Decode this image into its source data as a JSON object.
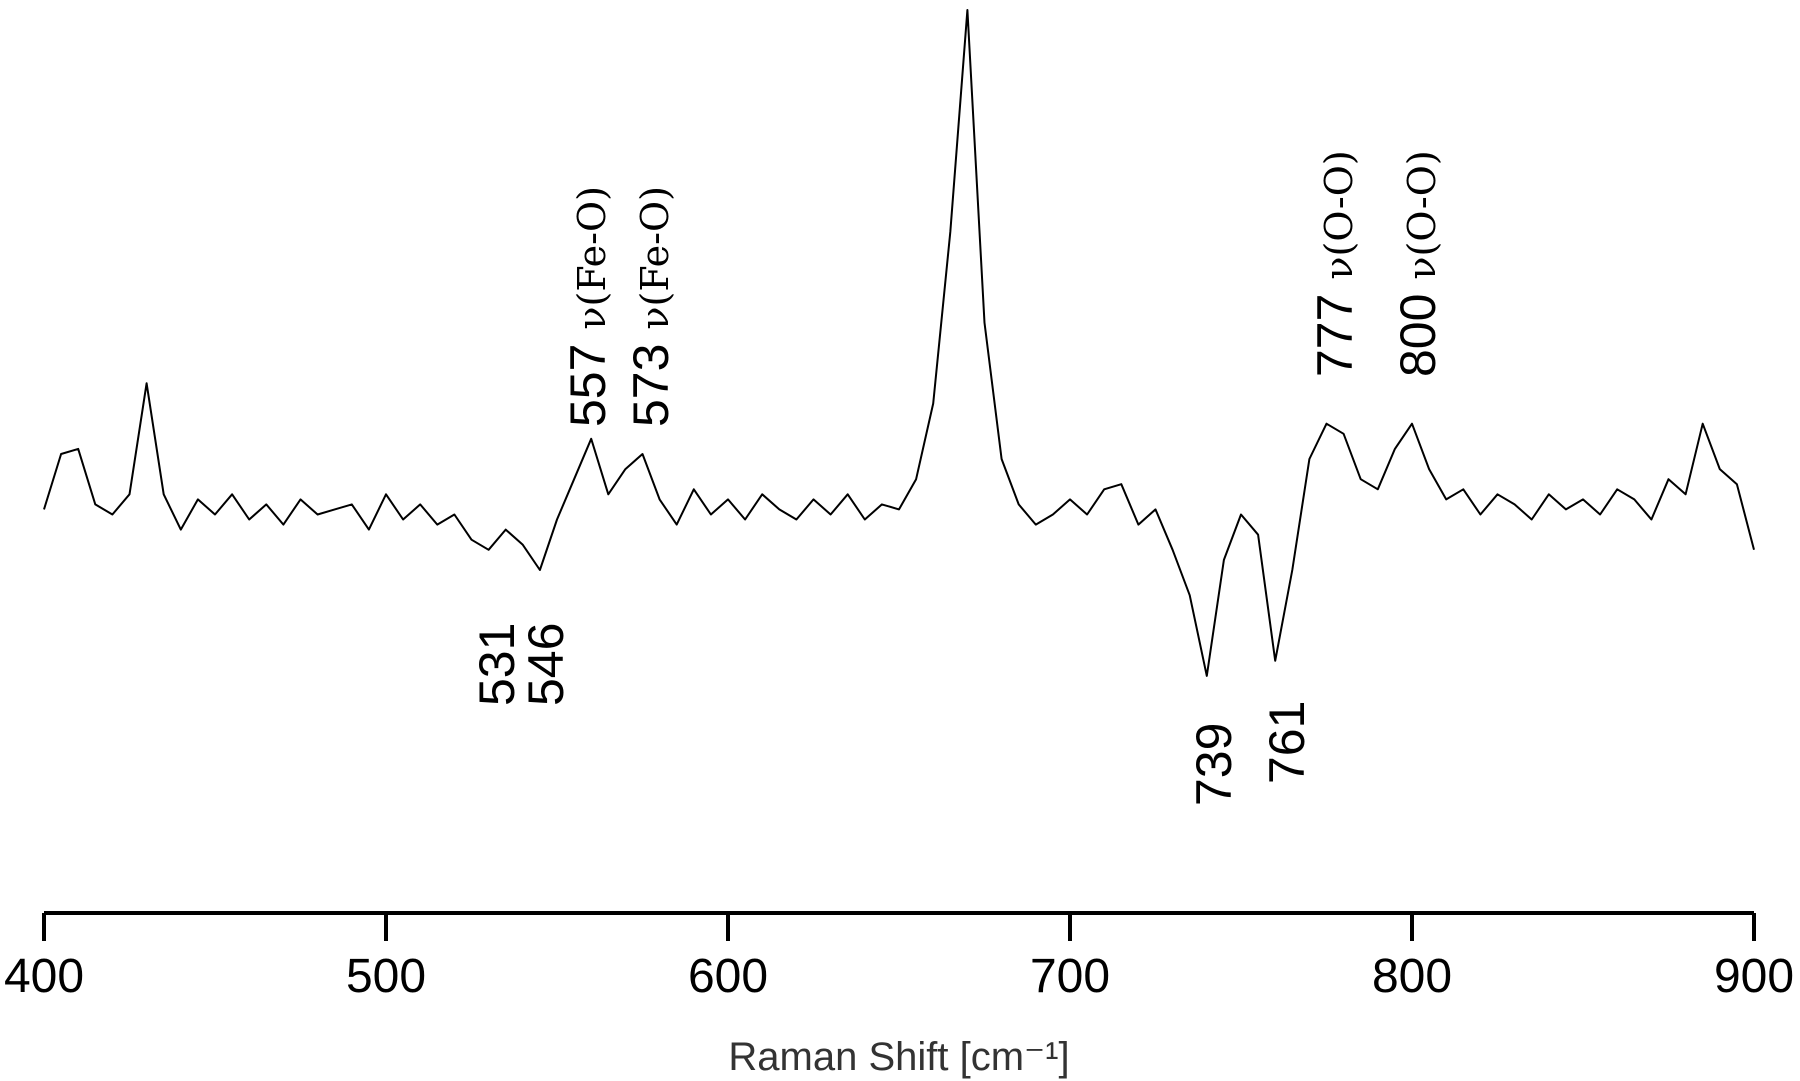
{
  "chart_data": {
    "type": "line",
    "x_label": "Raman Shift [cm⁻¹]",
    "color": "#000000",
    "x": [
      400,
      405,
      410,
      415,
      420,
      425,
      430,
      435,
      440,
      445,
      450,
      455,
      460,
      465,
      470,
      475,
      480,
      485,
      490,
      495,
      500,
      505,
      510,
      515,
      520,
      525,
      530,
      535,
      540,
      545,
      550,
      555,
      560,
      565,
      570,
      575,
      580,
      585,
      590,
      595,
      600,
      605,
      610,
      615,
      620,
      625,
      630,
      635,
      640,
      645,
      650,
      655,
      660,
      665,
      670,
      675,
      680,
      685,
      690,
      695,
      700,
      705,
      710,
      715,
      720,
      725,
      730,
      735,
      740,
      745,
      750,
      755,
      760,
      765,
      770,
      775,
      780,
      785,
      790,
      795,
      800,
      805,
      810,
      815,
      820,
      825,
      830,
      835,
      840,
      845,
      850,
      855,
      860,
      865,
      870,
      875,
      880,
      885,
      890,
      895,
      900
    ],
    "values": [
      0,
      11,
      12,
      1,
      -1,
      3,
      25,
      3,
      -4,
      2,
      -1,
      3,
      -2,
      1,
      -3,
      2,
      -1,
      0,
      1,
      -4,
      3,
      -2,
      1,
      -3,
      -1,
      -6,
      -8,
      -4,
      -7,
      -12,
      -2,
      6,
      14,
      3,
      8,
      11,
      2,
      -3,
      4,
      -1,
      2,
      -2,
      3,
      0,
      -2,
      2,
      -1,
      3,
      -2,
      1,
      0,
      6,
      21,
      55,
      99,
      37,
      10,
      1,
      -3,
      -1,
      2,
      -1,
      4,
      5,
      -3,
      0,
      -8,
      -17,
      -33,
      -10,
      -1,
      -5,
      -30,
      -12,
      10,
      17,
      15,
      6,
      4,
      12,
      17,
      8,
      2,
      4,
      -1,
      3,
      1,
      -2,
      3,
      0,
      2,
      -1,
      4,
      2,
      -2,
      6,
      3,
      17,
      8,
      5,
      -8
    ],
    "xlim": [
      400,
      900
    ],
    "xticks": [
      400,
      500,
      600,
      700,
      800,
      900
    ],
    "ylim": [
      -80,
      100
    ],
    "annotations": [
      {
        "label": "557",
        "note": "ν(Fe-O)"
      },
      {
        "label": "573",
        "note": "ν(Fe-O)"
      },
      {
        "label": "777",
        "note": "ν(O-O)"
      },
      {
        "label": "800",
        "note": "ν(O-O)"
      },
      {
        "label": "531"
      },
      {
        "label": "546"
      },
      {
        "label": "739"
      },
      {
        "label": "761"
      }
    ]
  }
}
